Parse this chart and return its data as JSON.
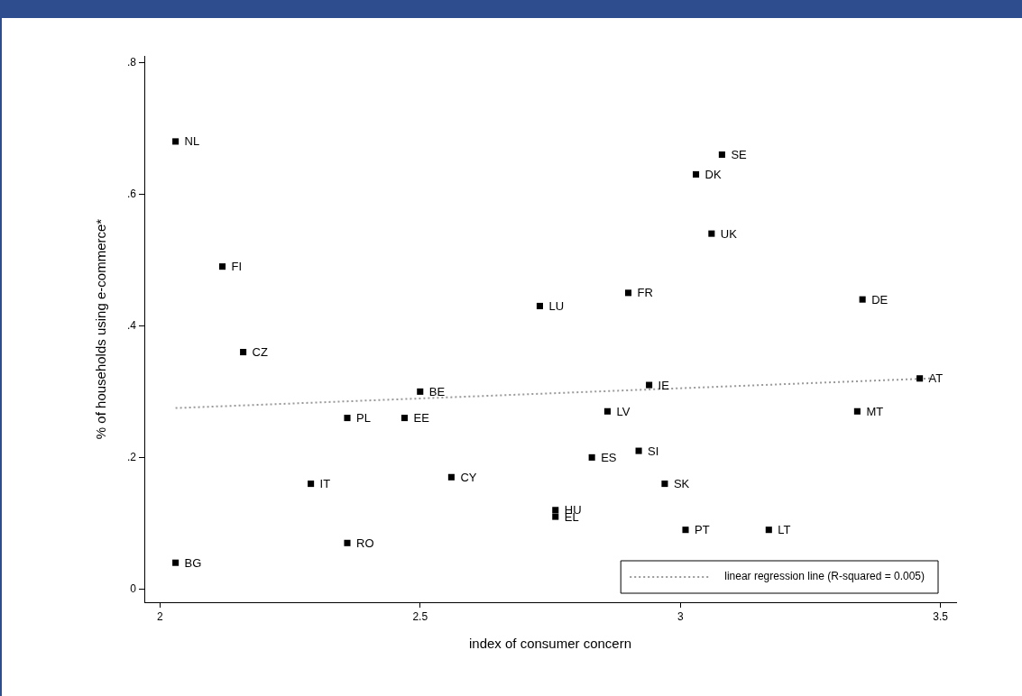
{
  "chart_data": {
    "type": "scatter",
    "xlabel": "index of consumer concern",
    "ylabel": "% of households using e-commerce*",
    "xlim": [
      1.97,
      3.53
    ],
    "xticks": [
      2,
      2.5,
      3,
      3.5
    ],
    "ylim": [
      -0.02,
      0.81
    ],
    "yticks": [
      0,
      {
        "value": 0.2,
        "label": ".2"
      },
      {
        "value": 0.4,
        "label": ".4"
      },
      {
        "value": 0.6,
        "label": ".6"
      },
      {
        "value": 0.8,
        "label": ".8"
      }
    ],
    "grid": false,
    "legend": "bottom right",
    "series": [
      {
        "type": "scatter",
        "color": "#000000",
        "marker": "square",
        "x": [
          2.03,
          2.12,
          2.16,
          2.5,
          2.36,
          2.47,
          2.29,
          2.56,
          2.36,
          2.03,
          2.73,
          2.9,
          3.08,
          3.03,
          3.06,
          3.35,
          3.46,
          3.34,
          2.94,
          2.86,
          2.92,
          2.83,
          2.97,
          2.76,
          2.76,
          3.01,
          3.17
        ],
        "values": [
          0.68,
          0.49,
          0.36,
          0.3,
          0.26,
          0.26,
          0.16,
          0.17,
          0.07,
          0.04,
          0.43,
          0.45,
          0.66,
          0.63,
          0.54,
          0.44,
          0.32,
          0.27,
          0.31,
          0.27,
          0.21,
          0.2,
          0.16,
          0.12,
          0.11,
          0.09,
          0.09
        ]
      },
      {
        "type": "line",
        "name": "linear regression line (R-squared = 0.005)",
        "color": "#999999",
        "marker": "none",
        "line_style": "dotted",
        "x": [
          2.03,
          3.48
        ],
        "values": [
          0.275,
          0.32
        ]
      }
    ],
    "annotations": [
      {
        "text": "NL",
        "x": 2.03,
        "y": 0.68
      },
      {
        "text": "FI",
        "x": 2.12,
        "y": 0.49
      },
      {
        "text": "CZ",
        "x": 2.16,
        "y": 0.36
      },
      {
        "text": "BE",
        "x": 2.5,
        "y": 0.3
      },
      {
        "text": "PL",
        "x": 2.36,
        "y": 0.26
      },
      {
        "text": "EE",
        "x": 2.47,
        "y": 0.26
      },
      {
        "text": "IT",
        "x": 2.29,
        "y": 0.16
      },
      {
        "text": "CY",
        "x": 2.56,
        "y": 0.17
      },
      {
        "text": "RO",
        "x": 2.36,
        "y": 0.07
      },
      {
        "text": "BG",
        "x": 2.03,
        "y": 0.04
      },
      {
        "text": "LU",
        "x": 2.73,
        "y": 0.43
      },
      {
        "text": "FR",
        "x": 2.9,
        "y": 0.45
      },
      {
        "text": "SE",
        "x": 3.08,
        "y": 0.66
      },
      {
        "text": "DK",
        "x": 3.03,
        "y": 0.63
      },
      {
        "text": "UK",
        "x": 3.06,
        "y": 0.54
      },
      {
        "text": "DE",
        "x": 3.35,
        "y": 0.44
      },
      {
        "text": "AT",
        "x": 3.46,
        "y": 0.32
      },
      {
        "text": "MT",
        "x": 3.34,
        "y": 0.27
      },
      {
        "text": "IE",
        "x": 2.94,
        "y": 0.31
      },
      {
        "text": "LV",
        "x": 2.86,
        "y": 0.27
      },
      {
        "text": "SI",
        "x": 2.92,
        "y": 0.21
      },
      {
        "text": "ES",
        "x": 2.83,
        "y": 0.2
      },
      {
        "text": "SK",
        "x": 2.97,
        "y": 0.16
      },
      {
        "text": "HU",
        "x": 2.76,
        "y": 0.12
      },
      {
        "text": "EL",
        "x": 2.76,
        "y": 0.11
      },
      {
        "text": "PT",
        "x": 3.01,
        "y": 0.09
      },
      {
        "text": "LT",
        "x": 3.17,
        "y": 0.09
      }
    ]
  }
}
